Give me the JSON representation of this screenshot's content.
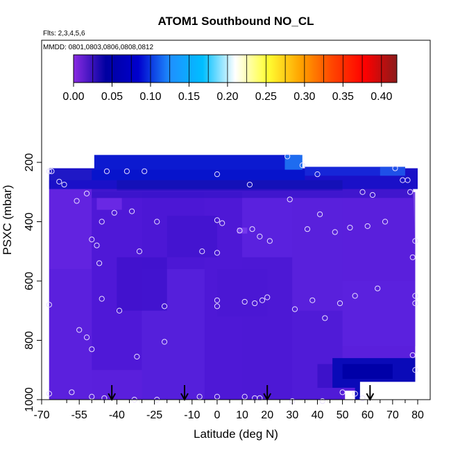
{
  "chart_data": {
    "type": "heatmap",
    "title": "ATOM1 Southbound NO_CL",
    "subtitle_flights": "Flts: 2,3,4,5,6",
    "subtitle_dates": "MMDD: 0801,0803,0806,0808,0812",
    "xlabel": "Latitude (deg N)",
    "ylabel": "PSXC (mbar)",
    "xlim": [
      -70,
      85
    ],
    "ylim": [
      1000,
      0
    ],
    "x_ticks": [
      -70,
      -55,
      -40,
      -25,
      -10,
      0,
      10,
      20,
      30,
      40,
      50,
      60,
      70,
      80
    ],
    "x_tick_labels": [
      "-70",
      "-55",
      "-40",
      "-25",
      "-10",
      "0",
      "10",
      "20",
      "30",
      "40",
      "50",
      "60",
      "70",
      "80"
    ],
    "x_minor_ticks": [
      -60,
      -50,
      -45,
      -35,
      -30,
      -20,
      -15,
      -5,
      5,
      15,
      25,
      35,
      45,
      55,
      65,
      75
    ],
    "y_ticks": [
      200,
      400,
      600,
      800,
      1000
    ],
    "y_tick_labels": [
      "200",
      "400",
      "600",
      "800",
      "1000"
    ],
    "colorbar": {
      "range": [
        0.0,
        0.42
      ],
      "tick_values": [
        0.0,
        0.05,
        0.1,
        0.15,
        0.2,
        0.25,
        0.3,
        0.35,
        0.4
      ],
      "tick_labels": [
        "0.00",
        "0.05",
        "0.10",
        "0.15",
        "0.20",
        "0.25",
        "0.30",
        "0.35",
        "0.40"
      ],
      "stops": [
        "#8a2be2",
        "#0000a0",
        "#0000cd",
        "#1e90ff",
        "#00bfff",
        "#ffffff",
        "#ffff33",
        "#ffa500",
        "#ff4500",
        "#ff0000",
        "#8b1a1a"
      ]
    },
    "grid": false,
    "colors": {
      "background_field": "#5b1edd",
      "low_lat_band": "#3a14c8",
      "upper_band": "#0a20d8",
      "marker": "#e8e0ff",
      "arrow": "#000000"
    },
    "arrow_latitudes": [
      -42,
      -13,
      20,
      61
    ],
    "profile_points": [
      {
        "lat": -67,
        "p": 230
      },
      {
        "lat": -66,
        "p": 230
      },
      {
        "lat": -63,
        "p": 265
      },
      {
        "lat": -61,
        "p": 275
      },
      {
        "lat": -56,
        "p": 330
      },
      {
        "lat": -52,
        "p": 305
      },
      {
        "lat": -50,
        "p": 460
      },
      {
        "lat": -48,
        "p": 480
      },
      {
        "lat": -47,
        "p": 540
      },
      {
        "lat": -46,
        "p": 660
      },
      {
        "lat": -46,
        "p": 400
      },
      {
        "lat": -44,
        "p": 230
      },
      {
        "lat": -41,
        "p": 370
      },
      {
        "lat": -39,
        "p": 700
      },
      {
        "lat": -36,
        "p": 230
      },
      {
        "lat": -34,
        "p": 365
      },
      {
        "lat": -32,
        "p": 855
      },
      {
        "lat": -31,
        "p": 500
      },
      {
        "lat": -29,
        "p": 230
      },
      {
        "lat": -24,
        "p": 400
      },
      {
        "lat": -21,
        "p": 685
      },
      {
        "lat": -21,
        "p": 805
      },
      {
        "lat": -6,
        "p": 500
      },
      {
        "lat": 0,
        "p": 240
      },
      {
        "lat": 0,
        "p": 395
      },
      {
        "lat": 2,
        "p": 405
      },
      {
        "lat": 0,
        "p": 505
      },
      {
        "lat": 0,
        "p": 665
      },
      {
        "lat": 0,
        "p": 685
      },
      {
        "lat": 9,
        "p": 430
      },
      {
        "lat": 11,
        "p": 670
      },
      {
        "lat": 13,
        "p": 275
      },
      {
        "lat": 14,
        "p": 425
      },
      {
        "lat": 15,
        "p": 675
      },
      {
        "lat": 17,
        "p": 450
      },
      {
        "lat": 18,
        "p": 665
      },
      {
        "lat": 20,
        "p": 655
      },
      {
        "lat": 21,
        "p": 465
      },
      {
        "lat": 28,
        "p": 180
      },
      {
        "lat": 29,
        "p": 325
      },
      {
        "lat": 31,
        "p": 695
      },
      {
        "lat": 34,
        "p": 210
      },
      {
        "lat": 36,
        "p": 425
      },
      {
        "lat": 38,
        "p": 665
      },
      {
        "lat": 40,
        "p": 240
      },
      {
        "lat": 41,
        "p": 375
      },
      {
        "lat": 43,
        "p": 725
      },
      {
        "lat": 47,
        "p": 435
      },
      {
        "lat": 49,
        "p": 675
      },
      {
        "lat": 50,
        "p": 975
      },
      {
        "lat": 53,
        "p": 420
      },
      {
        "lat": 55,
        "p": 650
      },
      {
        "lat": 55,
        "p": 980
      },
      {
        "lat": 58,
        "p": 300
      },
      {
        "lat": 60,
        "p": 415
      },
      {
        "lat": 62,
        "p": 310
      },
      {
        "lat": 64,
        "p": 625
      },
      {
        "lat": 67,
        "p": 400
      },
      {
        "lat": 71,
        "p": 220
      },
      {
        "lat": 74,
        "p": 260
      },
      {
        "lat": 76,
        "p": 260
      },
      {
        "lat": 77,
        "p": 300
      },
      {
        "lat": 78,
        "p": 520
      },
      {
        "lat": 79,
        "p": 465
      },
      {
        "lat": 79,
        "p": 675
      },
      {
        "lat": 79,
        "p": 650
      },
      {
        "lat": 78,
        "p": 850
      },
      {
        "lat": 79,
        "p": 900
      },
      {
        "lat": -55,
        "p": 765
      },
      {
        "lat": -52,
        "p": 790
      },
      {
        "lat": -50,
        "p": 830
      },
      {
        "lat": -58,
        "p": 975
      },
      {
        "lat": -50,
        "p": 990
      },
      {
        "lat": -45,
        "p": 995
      },
      {
        "lat": -33,
        "p": 1000
      },
      {
        "lat": -24,
        "p": 1000
      },
      {
        "lat": -7,
        "p": 990
      },
      {
        "lat": 0,
        "p": 990
      },
      {
        "lat": 11,
        "p": 990
      },
      {
        "lat": 15,
        "p": 995
      },
      {
        "lat": 17,
        "p": 995
      },
      {
        "lat": 30,
        "p": 1005
      },
      {
        "lat": 42,
        "p": 1005
      },
      {
        "lat": 58,
        "p": 995
      },
      {
        "lat": -67,
        "p": 980
      },
      {
        "lat": -67,
        "p": 680
      }
    ]
  }
}
